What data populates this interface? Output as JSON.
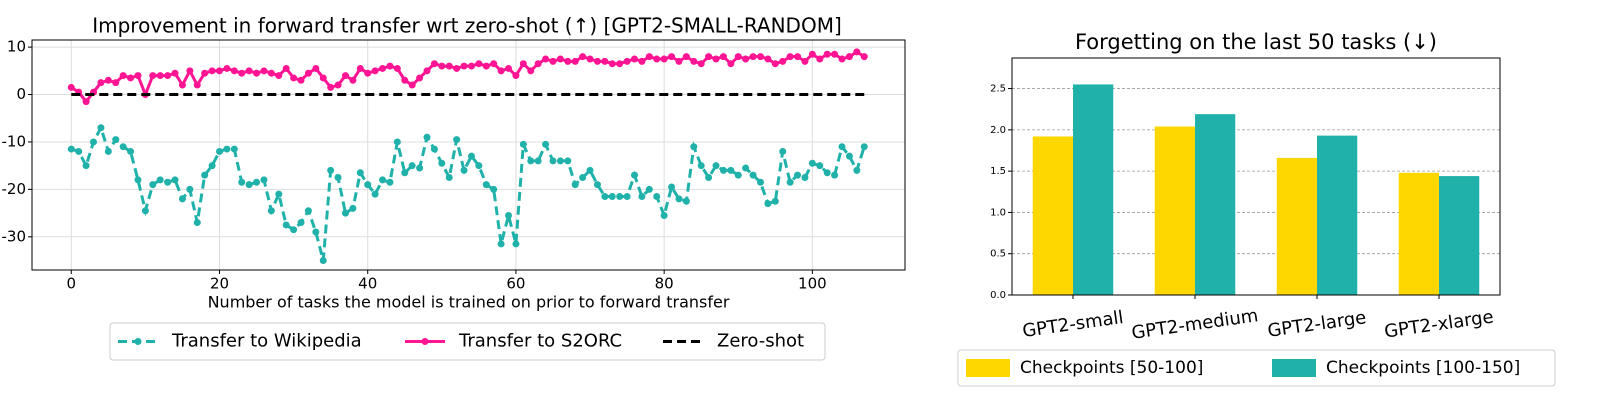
{
  "chart_data": [
    {
      "type": "line",
      "title": "Improvement in forward transfer wrt zero-shot (↑) [GPT2-SMALL-RANDOM]",
      "x_label": "Number of tasks the model is trained on prior to forward transfer",
      "x": [
        0,
        1,
        2,
        3,
        4,
        5,
        6,
        7,
        8,
        9,
        10,
        11,
        12,
        13,
        14,
        15,
        16,
        17,
        18,
        19,
        20,
        21,
        22,
        23,
        24,
        25,
        26,
        27,
        28,
        29,
        30,
        31,
        32,
        33,
        34,
        35,
        36,
        37,
        38,
        39,
        40,
        41,
        42,
        43,
        44,
        45,
        46,
        47,
        48,
        49,
        50,
        51,
        52,
        53,
        54,
        55,
        56,
        57,
        58,
        59,
        60,
        61,
        62,
        63,
        64,
        65,
        66,
        67,
        68,
        69,
        70,
        71,
        72,
        73,
        74,
        75,
        76,
        77,
        78,
        79,
        80,
        81,
        82,
        83,
        84,
        85,
        86,
        87,
        88,
        89,
        90,
        91,
        92,
        93,
        94,
        95,
        96,
        97,
        98,
        99,
        100,
        101,
        102,
        103,
        104,
        105,
        106,
        107
      ],
      "series": [
        {
          "name": "Transfer to Wikipedia",
          "color": "#20b2aa",
          "linestyle": "dashed",
          "marker": true,
          "values": [
            -11.5,
            -12,
            -15,
            -10,
            -7,
            -12,
            -9.5,
            -11,
            -12,
            -18,
            -24.5,
            -19,
            -18,
            -18.5,
            -18,
            -22,
            -20,
            -27,
            -17,
            -15,
            -12,
            -11.5,
            -11.5,
            -18.5,
            -19,
            -18.5,
            -18,
            -24.5,
            -21,
            -27.5,
            -28.5,
            -27,
            -24.5,
            -29,
            -35,
            -16,
            -17.5,
            -25,
            -24,
            -16.5,
            -19,
            -21,
            -18,
            -18.5,
            -10,
            -16.5,
            -15,
            -15.5,
            -9,
            -11.5,
            -14.5,
            -17.5,
            -9.5,
            -16,
            -13,
            -15,
            -19,
            -20,
            -31.5,
            -25.5,
            -31.5,
            -10.5,
            -14,
            -14,
            -10.5,
            -14,
            -14,
            -14,
            -19,
            -17.5,
            -16,
            -19,
            -21.5,
            -21.5,
            -21.5,
            -21.5,
            -17,
            -21.5,
            -20,
            -21.5,
            -25.5,
            -19.5,
            -22,
            -22.5,
            -11,
            -15,
            -17.5,
            -15,
            -16,
            -16,
            -17,
            -15.5,
            -17,
            -18.5,
            -23,
            -22.5,
            -12,
            -18.5,
            -17,
            -17.5,
            -14.5,
            -15,
            -16.5,
            -17,
            -11,
            -13,
            -16,
            -11
          ]
        },
        {
          "name": "Transfer to S2ORC",
          "color": "#ff1493",
          "linestyle": "solid",
          "marker": true,
          "values": [
            1.5,
            0.5,
            -1.5,
            0.5,
            2.5,
            3,
            2.5,
            4,
            3.5,
            4,
            0,
            4,
            4,
            4,
            4.5,
            2,
            5,
            2,
            4.5,
            5,
            5,
            5.5,
            5,
            4.5,
            5,
            4.5,
            5,
            4.5,
            4,
            5.5,
            3.5,
            3,
            4.5,
            5.5,
            3.5,
            1.5,
            2,
            4,
            3,
            5.5,
            4.5,
            5,
            5.5,
            6,
            5.5,
            3,
            2,
            3.5,
            5,
            6.5,
            6,
            6,
            5.5,
            6,
            6,
            6.5,
            6,
            6.5,
            5,
            5.5,
            4,
            6.5,
            5,
            6.5,
            7.5,
            7,
            7.5,
            7,
            7,
            8,
            7.5,
            7,
            7,
            6.5,
            6.5,
            7,
            7.5,
            7,
            8,
            7.5,
            7.5,
            8,
            7,
            8,
            7,
            6.5,
            8,
            7.5,
            8,
            6.5,
            8,
            7.5,
            8,
            8,
            7.5,
            6.5,
            7,
            8,
            8,
            7,
            8.5,
            7.5,
            8.5,
            8.5,
            7.5,
            8,
            9,
            8
          ]
        },
        {
          "name": "Zero-shot",
          "color": "#000000",
          "linestyle": "dashed",
          "marker": false,
          "values": [
            0,
            0,
            0,
            0,
            0,
            0,
            0,
            0,
            0,
            0,
            0,
            0,
            0,
            0,
            0,
            0,
            0,
            0,
            0,
            0,
            0,
            0,
            0,
            0,
            0,
            0,
            0,
            0,
            0,
            0,
            0,
            0,
            0,
            0,
            0,
            0,
            0,
            0,
            0,
            0,
            0,
            0,
            0,
            0,
            0,
            0,
            0,
            0,
            0,
            0,
            0,
            0,
            0,
            0,
            0,
            0,
            0,
            0,
            0,
            0,
            0,
            0,
            0,
            0,
            0,
            0,
            0,
            0,
            0,
            0,
            0,
            0,
            0,
            0,
            0,
            0,
            0,
            0,
            0,
            0,
            0,
            0,
            0,
            0,
            0,
            0,
            0,
            0,
            0,
            0,
            0,
            0,
            0,
            0,
            0,
            0,
            0,
            0,
            0,
            0,
            0,
            0,
            0,
            0,
            0,
            0,
            0,
            0
          ]
        }
      ],
      "xlim": [
        -5.3,
        112.5
      ],
      "xticks": [
        0,
        20,
        40,
        60,
        80,
        100
      ],
      "ylim": [
        -37,
        11.5
      ],
      "yticks": [
        -30,
        -20,
        -10,
        0,
        10
      ],
      "grid": true,
      "legend": "lower center"
    },
    {
      "type": "bar",
      "title": "Forgetting on the last 50 tasks (↓)",
      "categories": [
        "GPT2-small",
        "GPT2-medium",
        "GPT2-large",
        "GPT2-xlarge"
      ],
      "series": [
        {
          "name": "Checkpoints [50-100]",
          "color": "#ffd700",
          "values": [
            1.92,
            2.04,
            1.66,
            1.48
          ]
        },
        {
          "name": "Checkpoints [100-150]",
          "color": "#20b2aa",
          "values": [
            2.55,
            2.19,
            1.93,
            1.44
          ]
        }
      ],
      "ylim": [
        0,
        2.87
      ],
      "yticks": [
        {
          "value": 0,
          "label": "0.0"
        },
        0.5,
        {
          "value": 1,
          "label": "1.0"
        },
        1.5,
        {
          "value": 2,
          "label": "2.0"
        },
        2.5
      ],
      "grid": true,
      "legend": "lower center"
    }
  ]
}
